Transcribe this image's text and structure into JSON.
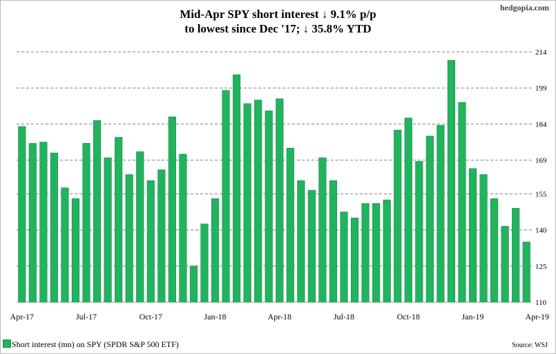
{
  "brand": "hedgopia.com",
  "title_line1": "Mid-Apr SPY short interest ↓ 9.1% p/p",
  "title_line2": "to lowest since Dec '17; ↓ 35.8% YTD",
  "legend_label": "Short interest (mn) on SPY (SPDR S&P 500 ETF)",
  "source": "Source: WSJ",
  "colors": {
    "bar": "#22b35e",
    "bar_edge": "#1a8a48",
    "grid": "#7f7f7f"
  },
  "chart_data": {
    "type": "bar",
    "title": "Mid-Apr SPY short interest ↓ 9.1% p/p to lowest since Dec '17; ↓ 35.8% YTD",
    "xlabel": "",
    "ylabel": "",
    "ylim": [
      110,
      214
    ],
    "yticks": [
      110,
      125,
      140,
      155,
      169,
      184,
      199,
      214
    ],
    "y_axis_side": "right",
    "grid": "dashed horizontal",
    "x_tick_labels": [
      {
        "label": "Apr-17",
        "index": 0
      },
      {
        "label": "Jul-17",
        "index": 6
      },
      {
        "label": "Oct-17",
        "index": 12
      },
      {
        "label": "Jan-18",
        "index": 18
      },
      {
        "label": "Apr-18",
        "index": 24
      },
      {
        "label": "Jul-18",
        "index": 30
      },
      {
        "label": "Oct-18",
        "index": 36
      },
      {
        "label": "Jan-19",
        "index": 42
      },
      {
        "label": "Apr-19",
        "index": 48
      }
    ],
    "series": [
      {
        "name": "Short interest (mn) on SPY (SPDR S&P 500 ETF)",
        "values": [
          183,
          176,
          176.5,
          172,
          157.5,
          153,
          176,
          185.5,
          170,
          178.5,
          163,
          172.5,
          160.5,
          165,
          187,
          171.5,
          125,
          142.5,
          153,
          198,
          204.5,
          192.5,
          194,
          189.5,
          194.5,
          174,
          160.5,
          156.5,
          170,
          160.5,
          147.5,
          145,
          151,
          151,
          152.5,
          181.5,
          186.5,
          168.5,
          179,
          183.5,
          210.5,
          193,
          165.5,
          163,
          153,
          141.5,
          149,
          135
        ]
      }
    ]
  }
}
